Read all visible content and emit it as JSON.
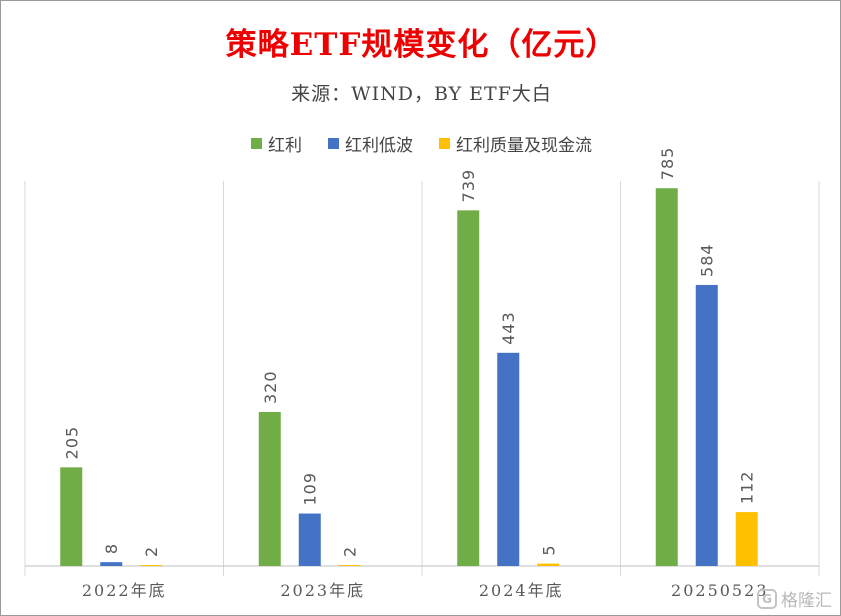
{
  "colors": {
    "title": "#ee0000",
    "series": [
      "#70ad47",
      "#4472c4",
      "#ffc000"
    ],
    "gridline": "#d9d9d9",
    "axis": "#bfbfbf",
    "label": "#595959"
  },
  "watermark": {
    "logo": "G",
    "text": "格隆汇"
  },
  "chart_data": {
    "type": "bar",
    "title": "策略ETF规模变化（亿元）",
    "subtitle": "来源：WIND，BY ETF大白",
    "categories": [
      "2022年底",
      "2023年底",
      "2024年底",
      "20250523"
    ],
    "series": [
      {
        "name": "红利",
        "values": [
          205,
          320,
          739,
          785
        ]
      },
      {
        "name": "红利低波",
        "values": [
          8,
          109,
          443,
          584
        ]
      },
      {
        "name": "红利质量及现金流",
        "values": [
          2,
          2,
          5,
          112
        ]
      }
    ],
    "ylim": [
      0,
      800
    ],
    "legend_position": "top",
    "grid": "vertical category separators",
    "data_labels": true
  }
}
